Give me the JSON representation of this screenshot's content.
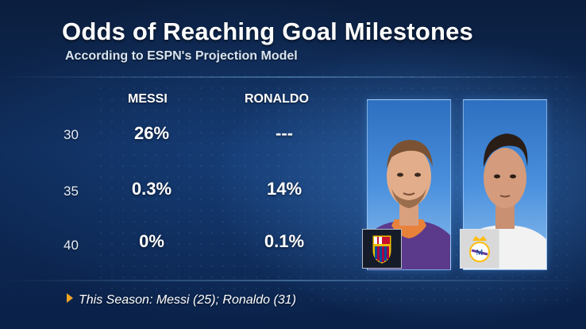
{
  "graphic": {
    "title": "Odds of Reaching Goal Milestones",
    "subtitle": "According to ESPN's Projection Model"
  },
  "table": {
    "columns": [
      "MESSI",
      "RONALDO"
    ],
    "rows": [
      {
        "milestone": "30",
        "messi": "26%",
        "ronaldo": "---"
      },
      {
        "milestone": "35",
        "messi": "0.3%",
        "ronaldo": "14%"
      },
      {
        "milestone": "40",
        "messi": "0%",
        "ronaldo": "0.1%"
      }
    ]
  },
  "players": {
    "messi": {
      "crest_icon": "fc-barcelona-crest-icon",
      "crest_colors": [
        "#a50044",
        "#004d98",
        "#edbb00"
      ]
    },
    "ronaldo": {
      "crest_icon": "real-madrid-crest-icon",
      "crest_colors": [
        "#ffffff",
        "#febe10",
        "#00529f"
      ]
    }
  },
  "footnote": {
    "text": "This Season: Messi (25); Ronaldo (31)",
    "icon": "triangle-bullet-icon",
    "accent": "#f0a622"
  }
}
